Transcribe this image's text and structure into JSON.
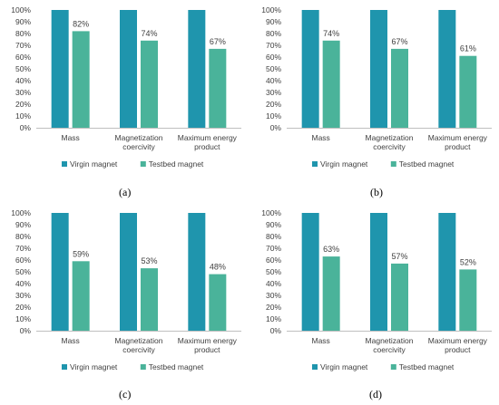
{
  "colors": {
    "virgin": "#1f95ad",
    "testbed": "#4ab39a",
    "axis": "#bfbfbf",
    "text": "#404040"
  },
  "chart_data": [
    {
      "type": "bar",
      "panel_label": "(a)",
      "categories": [
        [
          "Mass"
        ],
        [
          "Magnetization",
          "coercivity"
        ],
        [
          "Maximum energy",
          "product"
        ]
      ],
      "series": [
        {
          "name": "Virgin magnet",
          "values": [
            100,
            100,
            100
          ],
          "data_labels": [
            "",
            "",
            ""
          ]
        },
        {
          "name": "Testbed magnet",
          "values": [
            82,
            74,
            67
          ],
          "data_labels": [
            "82%",
            "74%",
            "67%"
          ]
        }
      ],
      "y_ticks": [
        "0%",
        "10%",
        "20%",
        "30%",
        "40%",
        "50%",
        "60%",
        "70%",
        "80%",
        "90%",
        "100%"
      ],
      "ylim": [
        0,
        100
      ],
      "legend": "bottom"
    },
    {
      "type": "bar",
      "panel_label": "(b)",
      "categories": [
        [
          "Mass"
        ],
        [
          "Magnetization",
          "coercivity"
        ],
        [
          "Maximum energy",
          "product"
        ]
      ],
      "series": [
        {
          "name": "Virgin magnet",
          "values": [
            100,
            100,
            100
          ],
          "data_labels": [
            "",
            "",
            ""
          ]
        },
        {
          "name": "Testbed magnet",
          "values": [
            74,
            67,
            61
          ],
          "data_labels": [
            "74%",
            "67%",
            "61%"
          ]
        }
      ],
      "y_ticks": [
        "0%",
        "10%",
        "20%",
        "30%",
        "40%",
        "50%",
        "60%",
        "70%",
        "80%",
        "90%",
        "100%"
      ],
      "ylim": [
        0,
        100
      ],
      "legend": "bottom"
    },
    {
      "type": "bar",
      "panel_label": "(c)",
      "categories": [
        [
          "Mass"
        ],
        [
          "Magnetization",
          "coercivity"
        ],
        [
          "Maximum energy",
          "product"
        ]
      ],
      "series": [
        {
          "name": "Virgin magnet",
          "values": [
            100,
            100,
            100
          ],
          "data_labels": [
            "",
            "",
            ""
          ]
        },
        {
          "name": "Testbed magnet",
          "values": [
            59,
            53,
            48
          ],
          "data_labels": [
            "59%",
            "53%",
            "48%"
          ]
        }
      ],
      "y_ticks": [
        "0%",
        "10%",
        "20%",
        "30%",
        "40%",
        "50%",
        "60%",
        "70%",
        "80%",
        "90%",
        "100%"
      ],
      "ylim": [
        0,
        100
      ],
      "legend": "bottom"
    },
    {
      "type": "bar",
      "panel_label": "(d)",
      "categories": [
        [
          "Mass"
        ],
        [
          "Magnetization",
          "coercivity"
        ],
        [
          "Maximum energy",
          "product"
        ]
      ],
      "series": [
        {
          "name": "Virgin magnet",
          "values": [
            100,
            100,
            100
          ],
          "data_labels": [
            "",
            "",
            ""
          ]
        },
        {
          "name": "Testbed magnet",
          "values": [
            63,
            57,
            52
          ],
          "data_labels": [
            "63%",
            "57%",
            "52%"
          ]
        }
      ],
      "y_ticks": [
        "0%",
        "10%",
        "20%",
        "30%",
        "40%",
        "50%",
        "60%",
        "70%",
        "80%",
        "90%",
        "100%"
      ],
      "ylim": [
        0,
        100
      ],
      "legend": "bottom"
    }
  ]
}
